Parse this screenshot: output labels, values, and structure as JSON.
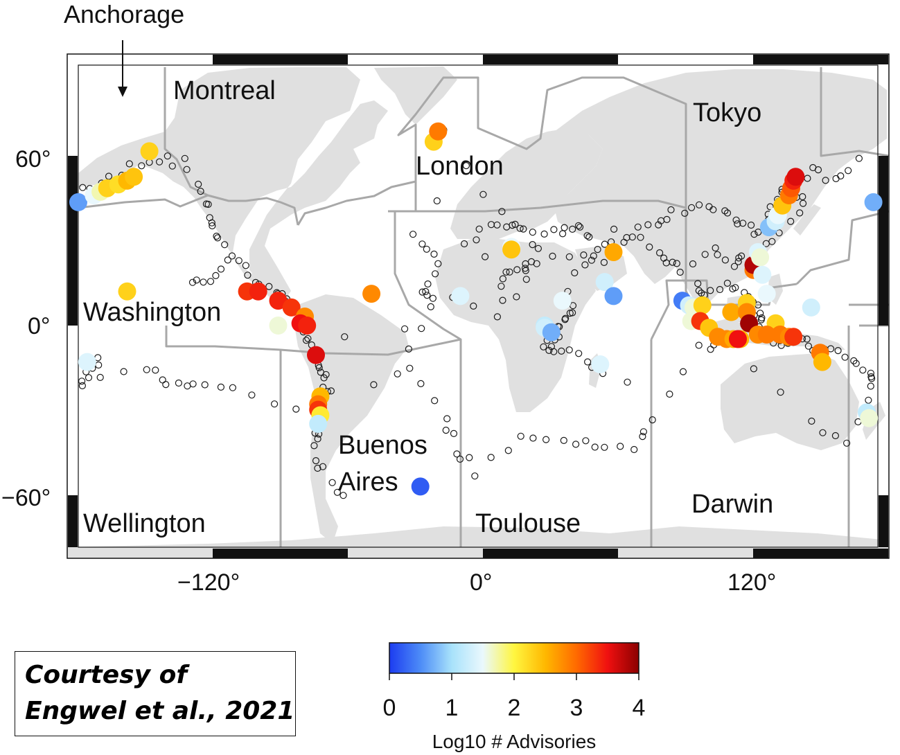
{
  "callout": {
    "label": "Anchorage"
  },
  "vaac_regions": [
    {
      "name": "Montreal"
    },
    {
      "name": "London"
    },
    {
      "name": "Tokyo"
    },
    {
      "name": "Washington"
    },
    {
      "name": "Buenos",
      "name_line2": "Aires"
    },
    {
      "name": "Wellington"
    },
    {
      "name": "Toulouse"
    },
    {
      "name": "Darwin"
    }
  ],
  "axes": {
    "y_ticks": [
      "60°",
      "0°",
      "−60°"
    ],
    "x_ticks": [
      "−120°",
      "0°",
      "120°"
    ]
  },
  "colorbar": {
    "label": "Log10 # Advisories",
    "ticks": [
      "0",
      "1",
      "2",
      "3",
      "4"
    ],
    "range": [
      0,
      4
    ],
    "stops": [
      "#1c3cf0",
      "#4d8cf7",
      "#a8e2fb",
      "#eaf8fd",
      "#fff640",
      "#ffb800",
      "#ff6a00",
      "#f01010",
      "#8b0000"
    ]
  },
  "courtesy": {
    "line1": "Courtesy of",
    "line2": "Engwel et al., 2021"
  },
  "colors": {
    "land": "#e0e0e0",
    "boundary": "#a8a8a8",
    "open_marker_stroke": "#1a1a1a"
  },
  "advisory_volcanoes": [
    {
      "lon": -180,
      "lat": 48,
      "v": 0.6
    },
    {
      "lon": -173,
      "lat": 50,
      "v": 1.5
    },
    {
      "lon": -170,
      "lat": 51,
      "v": 1.7
    },
    {
      "lon": -167,
      "lat": 52,
      "v": 2.3
    },
    {
      "lon": -162,
      "lat": 53,
      "v": 2.2
    },
    {
      "lon": -158,
      "lat": 54,
      "v": 2.5
    },
    {
      "lon": -155,
      "lat": 55,
      "v": 2.4
    },
    {
      "lon": -148,
      "lat": 61,
      "v": 2.3
    },
    {
      "lon": -158,
      "lat": 15,
      "v": 2.3
    },
    {
      "lon": -104,
      "lat": 15,
      "v": 3.3
    },
    {
      "lon": -99,
      "lat": 15,
      "v": 3.4
    },
    {
      "lon": -90,
      "lat": 11,
      "v": 3.4
    },
    {
      "lon": -84,
      "lat": 8,
      "v": 3.3
    },
    {
      "lon": -78,
      "lat": 4,
      "v": 2.8
    },
    {
      "lon": -80,
      "lat": 1,
      "v": 3.5
    },
    {
      "lon": -77,
      "lat": 0,
      "v": 3.4
    },
    {
      "lon": -90,
      "lat": 0,
      "v": 1.6
    },
    {
      "lon": -73,
      "lat": -13,
      "v": 3.6
    },
    {
      "lon": -71,
      "lat": -30,
      "v": 2.5
    },
    {
      "lon": -72,
      "lat": -33,
      "v": 2.9
    },
    {
      "lon": -72,
      "lat": -35,
      "v": 3.3
    },
    {
      "lon": -71,
      "lat": -37,
      "v": 2.1
    },
    {
      "lon": -72,
      "lat": -40,
      "v": 1.2
    },
    {
      "lon": -48,
      "lat": 14,
      "v": 2.8
    },
    {
      "lon": -20,
      "lat": 63,
      "v": 2.3
    },
    {
      "lon": -18,
      "lat": 65,
      "v": 2.9
    },
    {
      "lon": -26,
      "lat": -58,
      "v": 0.2
    },
    {
      "lon": -8,
      "lat": 13,
      "v": 1.4
    },
    {
      "lon": 15,
      "lat": 33,
      "v": 1.5
    },
    {
      "lon": 15,
      "lat": 32,
      "v": 2.4
    },
    {
      "lon": 30,
      "lat": 0,
      "v": 1.2
    },
    {
      "lon": 30,
      "lat": -1,
      "v": 1.3
    },
    {
      "lon": 33,
      "lat": -3,
      "v": 0.7
    },
    {
      "lon": 38,
      "lat": 11,
      "v": 1.5
    },
    {
      "lon": 55,
      "lat": -17,
      "v": 1.4
    },
    {
      "lon": 61,
      "lat": 31,
      "v": 2.6
    },
    {
      "lon": 57,
      "lat": 19,
      "v": 1.3
    },
    {
      "lon": 61,
      "lat": 13,
      "v": 0.6
    },
    {
      "lon": 92,
      "lat": 11,
      "v": 0.4
    },
    {
      "lon": 95,
      "lat": 9,
      "v": 1.3
    },
    {
      "lon": 96,
      "lat": 2,
      "v": 1.6
    },
    {
      "lon": 97,
      "lat": 8,
      "v": 1.6
    },
    {
      "lon": 101,
      "lat": 9,
      "v": 2.3
    },
    {
      "lon": 100,
      "lat": 2,
      "v": 3.3
    },
    {
      "lon": 104,
      "lat": -1,
      "v": 2.4
    },
    {
      "lon": 108,
      "lat": -5,
      "v": 2.8
    },
    {
      "lon": 112,
      "lat": -6,
      "v": 2.8
    },
    {
      "lon": 115,
      "lat": -6,
      "v": 2.6
    },
    {
      "lon": 118,
      "lat": -6,
      "v": 2.5
    },
    {
      "lon": 117,
      "lat": -6,
      "v": 3.5
    },
    {
      "lon": 114,
      "lat": 6,
      "v": 2.6
    },
    {
      "lon": 121,
      "lat": 10,
      "v": 2.3
    },
    {
      "lon": 121,
      "lat": 6,
      "v": 2.8
    },
    {
      "lon": 122,
      "lat": 1,
      "v": 3.9
    },
    {
      "lon": 124,
      "lat": 24,
      "v": 2.9
    },
    {
      "lon": 124,
      "lat": 26,
      "v": 3.8
    },
    {
      "lon": 126,
      "lat": 31,
      "v": 1.4
    },
    {
      "lon": 127,
      "lat": 29,
      "v": 1.6
    },
    {
      "lon": 128,
      "lat": 22,
      "v": 1.4
    },
    {
      "lon": 130,
      "lat": 14,
      "v": 1.5
    },
    {
      "lon": 131,
      "lat": 40,
      "v": 0.8
    },
    {
      "lon": 134,
      "lat": 42,
      "v": 1.3
    },
    {
      "lon": 135,
      "lat": 44,
      "v": 1.5
    },
    {
      "lon": 137,
      "lat": 47,
      "v": 2.4
    },
    {
      "lon": 140,
      "lat": 50,
      "v": 2.9
    },
    {
      "lon": 141,
      "lat": 52,
      "v": 3.1
    },
    {
      "lon": 142,
      "lat": 54,
      "v": 3.4
    },
    {
      "lon": 143,
      "lat": 55,
      "v": 3.6
    },
    {
      "lon": 134,
      "lat": 1,
      "v": 2.3
    },
    {
      "lon": 136,
      "lat": -4,
      "v": 2.9
    },
    {
      "lon": 140,
      "lat": -5,
      "v": 2.8
    },
    {
      "lon": 142,
      "lat": -5,
      "v": 3.3
    },
    {
      "lon": 126,
      "lat": -4,
      "v": 2.8
    },
    {
      "lon": 130,
      "lat": -4,
      "v": 2.9
    },
    {
      "lon": 150,
      "lat": 8,
      "v": 1.3
    },
    {
      "lon": 154,
      "lat": -12,
      "v": 2.9
    },
    {
      "lon": 155,
      "lat": -16,
      "v": 2.5
    },
    {
      "lon": 175,
      "lat": -36,
      "v": 1.2
    },
    {
      "lon": 176,
      "lat": -38,
      "v": 1.6
    },
    {
      "lon": -176,
      "lat": -16,
      "v": 1.4
    },
    {
      "lon": 178,
      "lat": 48,
      "v": 0.7
    }
  ]
}
